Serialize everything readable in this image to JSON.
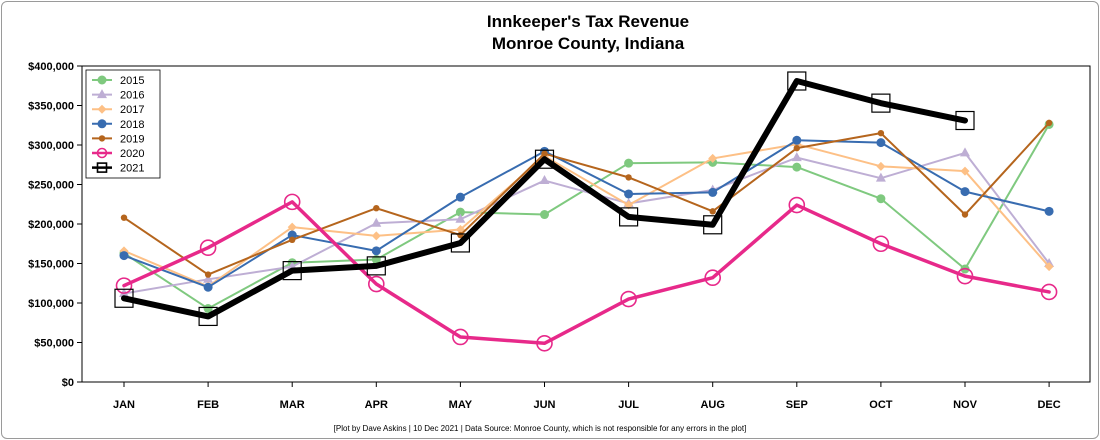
{
  "chart_data": {
    "type": "line",
    "title": "Innkeeper's Tax Revenue",
    "subtitle": "Monroe County, Indiana",
    "xlabel": "",
    "ylabel": "",
    "categories": [
      "JAN",
      "FEB",
      "MAR",
      "APR",
      "MAY",
      "JUN",
      "JUL",
      "AUG",
      "SEP",
      "OCT",
      "NOV",
      "DEC"
    ],
    "ylim": [
      0,
      400000
    ],
    "yticks": [
      0,
      50000,
      100000,
      150000,
      200000,
      250000,
      300000,
      350000,
      400000
    ],
    "ytick_labels": [
      "$0",
      "$50,000",
      "$100,000",
      "$150,000",
      "$200,000",
      "$250,000",
      "$300,000",
      "$350,000",
      "$400,000"
    ],
    "grid": false,
    "legend_position": "top-left",
    "caption": "[Plot by Dave Askins | 10 Dec 2021 | Data Source: Monroe County, which is not responsible for any errors in the plot]",
    "series": [
      {
        "name": "2015",
        "color": "#7fc97f",
        "marker": "circle",
        "width": 2,
        "values": [
          163000,
          93000,
          151000,
          155000,
          215000,
          212000,
          277000,
          278000,
          272000,
          232000,
          143000,
          326000
        ]
      },
      {
        "name": "2016",
        "color": "#beaed4",
        "marker": "triangle",
        "width": 2,
        "values": [
          112000,
          130000,
          146000,
          201000,
          206000,
          255000,
          226000,
          243000,
          284000,
          258000,
          290000,
          150000
        ]
      },
      {
        "name": "2017",
        "color": "#fdc086",
        "marker": "diamond",
        "width": 2,
        "values": [
          166000,
          121000,
          196000,
          185000,
          193000,
          286000,
          224000,
          283000,
          301000,
          273000,
          267000,
          146000
        ]
      },
      {
        "name": "2018",
        "color": "#386cb0",
        "marker": "circle",
        "width": 2,
        "values": [
          160000,
          120000,
          186000,
          166000,
          234000,
          292000,
          238000,
          240000,
          306000,
          303000,
          241000,
          216000
        ]
      },
      {
        "name": "2019",
        "color": "#b5651d",
        "marker": "smallcircle",
        "width": 2,
        "values": [
          208000,
          136000,
          180000,
          220000,
          186000,
          289000,
          259000,
          216000,
          296000,
          315000,
          212000,
          328000
        ]
      },
      {
        "name": "2020",
        "color": "#e7298a",
        "marker": "opencircle",
        "width": 3.5,
        "values": [
          122000,
          170000,
          228000,
          124000,
          57000,
          49000,
          105000,
          132000,
          224000,
          175000,
          134000,
          114000
        ]
      },
      {
        "name": "2021",
        "color": "#000000",
        "marker": "opensquare",
        "width": 6,
        "values": [
          106000,
          83000,
          141000,
          147000,
          176000,
          282000,
          209000,
          199000,
          381000,
          353000,
          331000,
          null
        ]
      }
    ]
  }
}
